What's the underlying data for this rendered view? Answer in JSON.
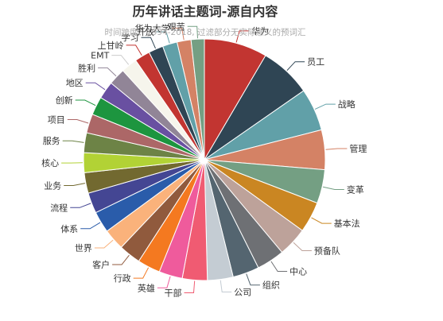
{
  "chart_data": {
    "type": "pie",
    "title": "历年讲话主题词-源自内容",
    "subtitle": "时间跨度：1994-2018, 过滤部分无实际意义的预词汇",
    "unit": "percent of total (estimated from slice angles)",
    "slices": [
      {
        "label": "华为",
        "value": 8.6,
        "color": "#c23531"
      },
      {
        "label": "员工",
        "value": 7.0,
        "color": "#2f4554"
      },
      {
        "label": "战略",
        "value": 5.8,
        "color": "#61a0a8"
      },
      {
        "label": "管理",
        "value": 5.4,
        "color": "#d48265"
      },
      {
        "label": "变革",
        "value": 4.6,
        "color": "#749f83"
      },
      {
        "label": "基本法",
        "value": 4.2,
        "color": "#ca8622"
      },
      {
        "label": "预备队",
        "value": 4.0,
        "color": "#bda29a"
      },
      {
        "label": "中心",
        "value": 3.8,
        "color": "#6e7074"
      },
      {
        "label": "组织",
        "value": 3.6,
        "color": "#546570"
      },
      {
        "label": "公司",
        "value": 3.5,
        "color": "#c4ccd3"
      },
      {
        "label": "干部",
        "value": 3.4,
        "color": "#f05b72"
      },
      {
        "label": "英雄",
        "value": 3.2,
        "color": "#ef5b9c"
      },
      {
        "label": "行政",
        "value": 3.1,
        "color": "#f47920"
      },
      {
        "label": "客户",
        "value": 3.0,
        "color": "#905a3d"
      },
      {
        "label": "世界",
        "value": 2.9,
        "color": "#fab27b"
      },
      {
        "label": "体系",
        "value": 2.9,
        "color": "#2a5caa"
      },
      {
        "label": "流程",
        "value": 2.8,
        "color": "#444693"
      },
      {
        "label": "业务",
        "value": 2.8,
        "color": "#726930"
      },
      {
        "label": "核心",
        "value": 2.7,
        "color": "#b2d235"
      },
      {
        "label": "服务",
        "value": 2.7,
        "color": "#6d8346"
      },
      {
        "label": "项目",
        "value": 2.6,
        "color": "#ac6767"
      },
      {
        "label": "创新",
        "value": 2.5,
        "color": "#1d953f"
      },
      {
        "label": "地区",
        "value": 2.4,
        "color": "#6950a1"
      },
      {
        "label": "胜利",
        "value": 2.3,
        "color": "#918597"
      },
      {
        "label": "EMT",
        "value": 2.2,
        "color": "#f6f5ec"
      },
      {
        "label": "上甘岭",
        "value": 2.1,
        "color": "#c23531"
      },
      {
        "label": "学习",
        "value": 2.0,
        "color": "#2f4554"
      },
      {
        "label": "开放",
        "value": 2.0,
        "color": "#61a0a8"
      },
      {
        "label": "华为大学",
        "value": 1.9,
        "color": "#d48265"
      },
      {
        "label": "艰苦",
        "value": 1.8,
        "color": "#749f83"
      }
    ]
  }
}
